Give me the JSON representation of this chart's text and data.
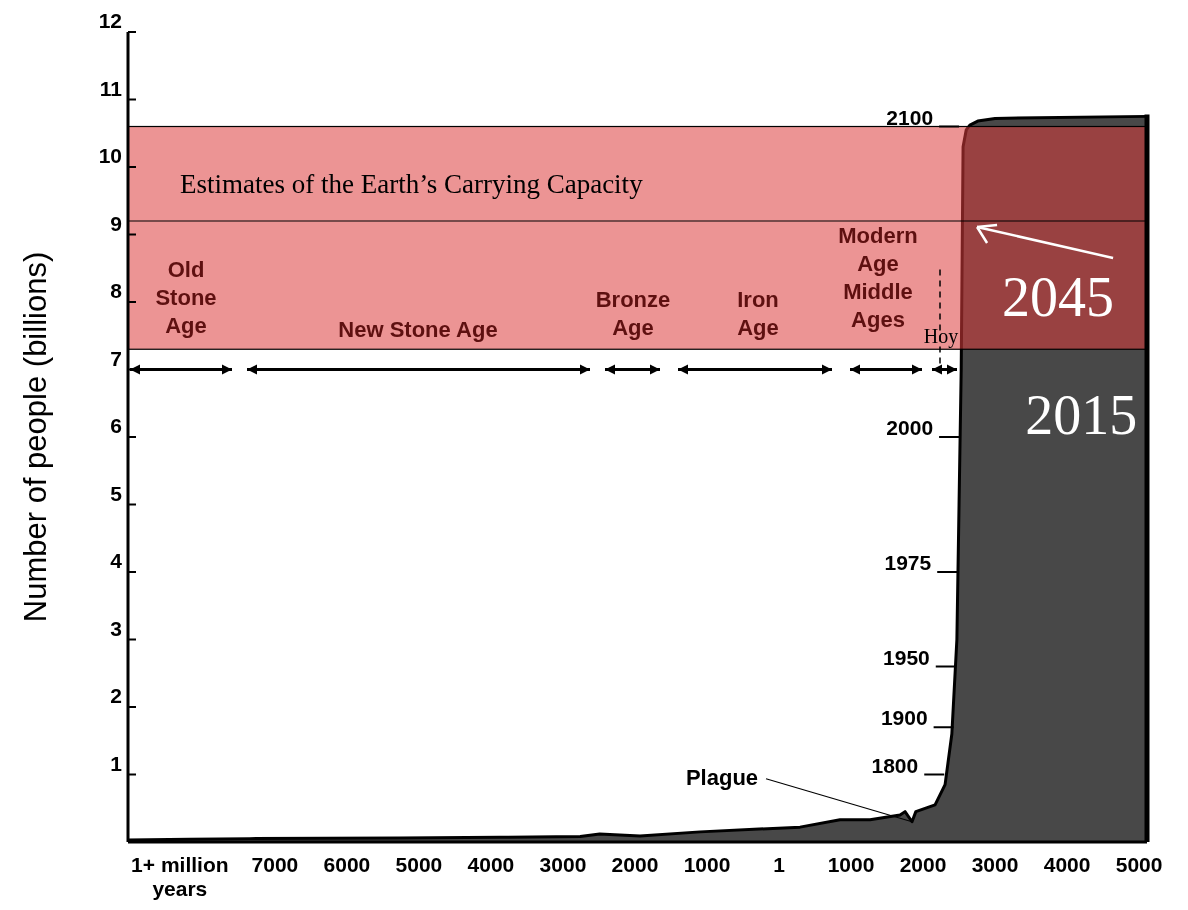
{
  "chart_data": {
    "type": "area",
    "ylabel": "Number of people (billions)",
    "xlim": [
      -9040,
      5110
    ],
    "ylim": [
      0,
      12
    ],
    "xticks": [
      {
        "value": -8320,
        "label": "1+ million years"
      },
      {
        "value": -7000,
        "label": "7000"
      },
      {
        "value": -6000,
        "label": "6000"
      },
      {
        "value": -5000,
        "label": "5000"
      },
      {
        "value": -4000,
        "label": "4000"
      },
      {
        "value": -3000,
        "label": "3000"
      },
      {
        "value": -2000,
        "label": "2000"
      },
      {
        "value": -1000,
        "label": "1000"
      },
      1,
      1000,
      2000,
      3000,
      4000,
      5000
    ],
    "yticks": [
      1,
      2,
      3,
      4,
      5,
      6,
      7,
      8,
      9,
      10,
      11,
      12
    ],
    "series": [
      {
        "color": "#484848",
        "x": [
          -9040,
          -8180,
          -7350,
          -5264,
          -3875,
          -2760,
          -2490,
          -1930,
          -1097,
          292,
          847,
          1264,
          1681,
          1750,
          1847,
          1900,
          2167,
          2306,
          2400,
          2470,
          2500,
          2530,
          2556,
          2600,
          2650,
          2760,
          3000,
          5110
        ],
        "values": [
          0.03,
          0.04,
          0.05,
          0.06,
          0.07,
          0.08,
          0.12,
          0.09,
          0.15,
          0.22,
          0.33,
          0.33,
          0.4,
          0.45,
          0.3,
          0.45,
          0.55,
          0.85,
          1.6,
          3,
          5,
          7,
          10.3,
          10.55,
          10.62,
          10.68,
          10.72,
          10.75
        ]
      }
    ],
    "bands": [
      {
        "axis": "y",
        "from": 7.3,
        "to": 10.6,
        "label": "Estimates of the Earth’s Carrying Capacity",
        "color": "#dc3c3c"
      }
    ],
    "ref_lines": [
      {
        "axis": "y",
        "value": 9.2,
        "color": "#000000"
      }
    ],
    "annotations": [
      "Old Stone Age",
      "New Stone Age",
      "Bronze Age",
      "Iron Age",
      "Middle Ages",
      "Modern Age",
      "Hoy",
      {
        "text": "2100",
        "x": 2556,
        "y": 10.6
      },
      {
        "text": "2000",
        "x": 2556,
        "y": 6.0
      },
      {
        "text": "1975",
        "x": 2530,
        "y": 4.0
      },
      {
        "text": "1950",
        "x": 2510,
        "y": 2.6
      },
      {
        "text": "1900",
        "x": 2480,
        "y": 1.7
      },
      {
        "text": "1800",
        "x": 2350,
        "y": 1.0
      },
      {
        "text": "Plague",
        "x": 1847,
        "y": 0.3
      },
      {
        "text": "2045",
        "x": 2556,
        "y": 9.2
      },
      {
        "text": "2015",
        "x": 2600,
        "y": 7.3
      }
    ]
  }
}
